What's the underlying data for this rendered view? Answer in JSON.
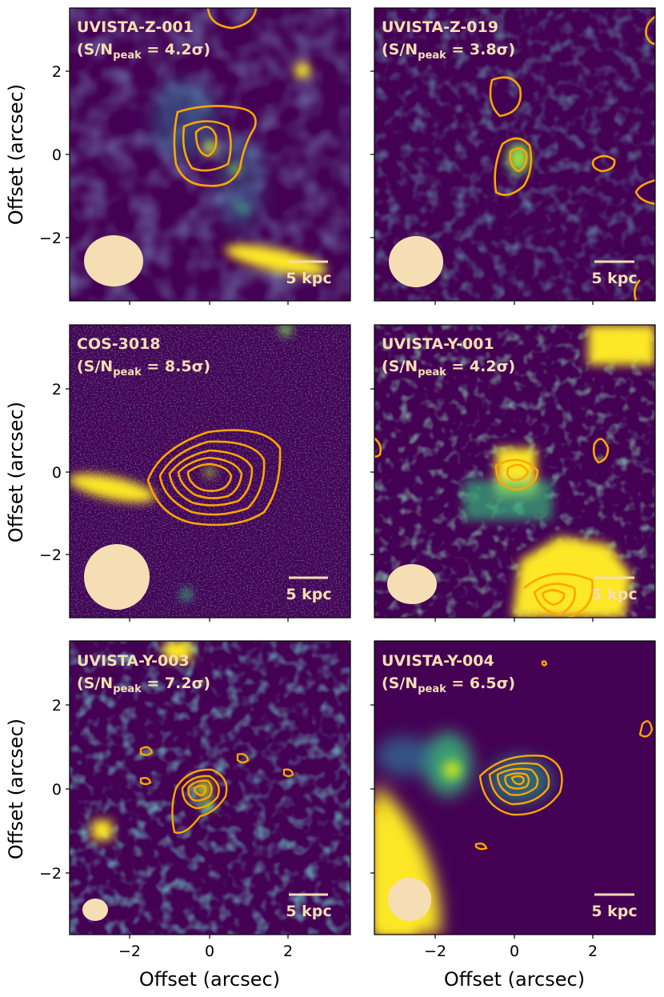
{
  "figure": {
    "x_axis_label": "Offset (arcsec)",
    "y_axis_label": "Offset (arcsec)",
    "tick_labels": [
      "−2",
      "0",
      "2"
    ],
    "scale_bar_label": "5 kpc",
    "colors": {
      "background": "#440154",
      "contour": "#ffa500",
      "beam": "#f5deb3",
      "label": "#f5deb3",
      "bright": "#fde725"
    }
  },
  "panels": [
    {
      "name": "UVISTA-Z-001",
      "snr_prefix": "(S/N",
      "snr_sub": "peak",
      "snr_value": " = 4.2σ)"
    },
    {
      "name": "UVISTA-Z-019",
      "snr_prefix": "(S/N",
      "snr_sub": "peak",
      "snr_value": " = 3.8σ)"
    },
    {
      "name": "COS-3018",
      "snr_prefix": "(S/N",
      "snr_sub": "peak",
      "snr_value": " = 8.5σ)"
    },
    {
      "name": "UVISTA-Y-001",
      "snr_prefix": "(S/N",
      "snr_sub": "peak",
      "snr_value": " = 4.2σ)"
    },
    {
      "name": "UVISTA-Y-003",
      "snr_prefix": "(S/N",
      "snr_sub": "peak",
      "snr_value": " = 7.2σ)"
    },
    {
      "name": "UVISTA-Y-004",
      "snr_prefix": "(S/N",
      "snr_sub": "peak",
      "snr_value": " = 6.5σ)"
    }
  ]
}
